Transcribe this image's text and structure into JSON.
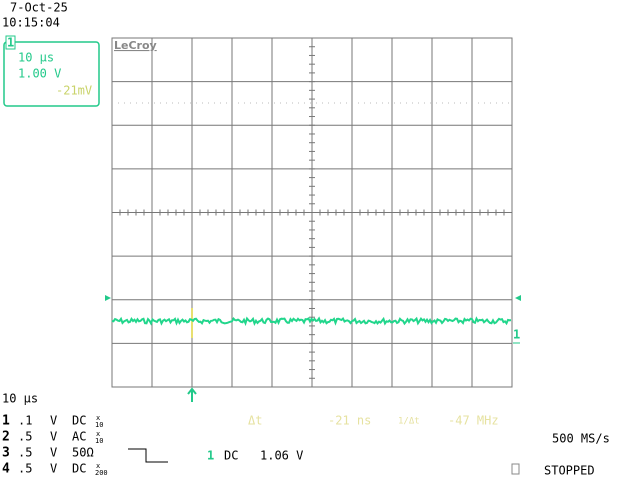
{
  "header": {
    "date": "7-Oct-25",
    "time": "10:15:04"
  },
  "channel_box": {
    "channel": "1",
    "timebase": "10 µs",
    "volts_per_div": "1.00 V",
    "offset": "-21mV"
  },
  "brand": "LeCroy",
  "timebase": "10 µs",
  "channels": [
    {
      "number": "1",
      "scale": ".1",
      "unit": "V",
      "coupling": "DC",
      "probe": "x",
      "probe_factor": "10"
    },
    {
      "number": "2",
      "scale": ".5",
      "unit": "V",
      "coupling": "AC",
      "probe": "x",
      "probe_factor": "10"
    },
    {
      "number": "3",
      "scale": ".5",
      "unit": "V",
      "coupling": "50Ω"
    },
    {
      "number": "4",
      "scale": ".5",
      "unit": "V",
      "coupling": "DC",
      "probe": "x",
      "probe_factor": "200"
    }
  ],
  "cursor": {
    "delta_t_label": "Δt",
    "delta_t": "-21 ns",
    "inverse_label": "1/Δt",
    "inverse": "-47 MHz"
  },
  "trigger": {
    "channel": "1",
    "coupling": "DC",
    "level": "1.06 V"
  },
  "acquisition": {
    "sample_rate": "500 MS/s",
    "status": "STOPPED"
  },
  "trace_label": "1"
}
